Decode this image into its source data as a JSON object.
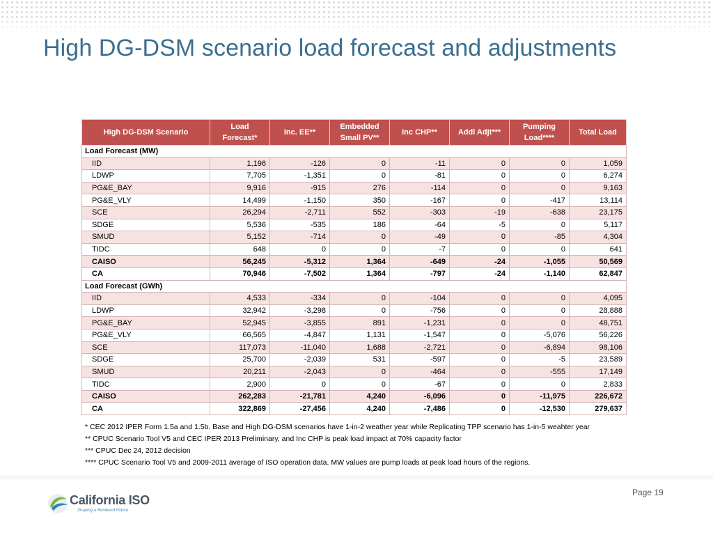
{
  "title": "High DG-DSM scenario load forecast and adjustments",
  "table": {
    "headers": [
      "High DG-DSM Scenario",
      "Load Forecast*",
      "Inc. EE**",
      "Embedded Small PV**",
      "Inc CHP**",
      "Addl Adjt***",
      "Pumping Load****",
      "Total Load"
    ],
    "mw_section": "Load Forecast (MW)",
    "mw_rows": [
      {
        "name": "IID",
        "values": [
          "1,196",
          "-126",
          "0",
          "-11",
          "0",
          "0",
          "1,059"
        ]
      },
      {
        "name": "LDWP",
        "values": [
          "7,705",
          "-1,351",
          "0",
          "-81",
          "0",
          "0",
          "6,274"
        ]
      },
      {
        "name": "PG&E_BAY",
        "values": [
          "9,916",
          "-915",
          "276",
          "-114",
          "0",
          "0",
          "9,163"
        ]
      },
      {
        "name": "PG&E_VLY",
        "values": [
          "14,499",
          "-1,150",
          "350",
          "-167",
          "0",
          "-417",
          "13,114"
        ]
      },
      {
        "name": "SCE",
        "values": [
          "26,294",
          "-2,711",
          "552",
          "-303",
          "-19",
          "-638",
          "23,175"
        ]
      },
      {
        "name": "SDGE",
        "values": [
          "5,536",
          "-535",
          "186",
          "-64",
          "-5",
          "0",
          "5,117"
        ]
      },
      {
        "name": "SMUD",
        "values": [
          "5,152",
          "-714",
          "0",
          "-49",
          "0",
          "-85",
          "4,304"
        ]
      },
      {
        "name": "TIDC",
        "values": [
          "648",
          "0",
          "0",
          "-7",
          "0",
          "0",
          "641"
        ]
      },
      {
        "name": "CAISO",
        "values": [
          "56,245",
          "-5,312",
          "1,364",
          "-649",
          "-24",
          "-1,055",
          "50,569"
        ]
      },
      {
        "name": "CA",
        "values": [
          "70,946",
          "-7,502",
          "1,364",
          "-797",
          "-24",
          "-1,140",
          "62,847"
        ]
      }
    ],
    "gwh_section": "Load Forecast (GWh)",
    "gwh_rows": [
      {
        "name": "IID",
        "values": [
          "4,533",
          "-334",
          "0",
          "-104",
          "0",
          "0",
          "4,095"
        ]
      },
      {
        "name": "LDWP",
        "values": [
          "32,942",
          "-3,298",
          "0",
          "-756",
          "0",
          "0",
          "28,888"
        ]
      },
      {
        "name": "PG&E_BAY",
        "values": [
          "52,945",
          "-3,855",
          "891",
          "-1,231",
          "0",
          "0",
          "48,751"
        ]
      },
      {
        "name": "PG&E_VLY",
        "values": [
          "66,565",
          "-4,847",
          "1,131",
          "-1,547",
          "0",
          "-5,076",
          "56,226"
        ]
      },
      {
        "name": "SCE",
        "values": [
          "117,073",
          "-11,040",
          "1,688",
          "-2,721",
          "0",
          "-6,894",
          "98,106"
        ]
      },
      {
        "name": "SDGE",
        "values": [
          "25,700",
          "-2,039",
          "531",
          "-597",
          "0",
          "-5",
          "23,589"
        ]
      },
      {
        "name": "SMUD",
        "values": [
          "20,211",
          "-2,043",
          "0",
          "-464",
          "0",
          "-555",
          "17,149"
        ]
      },
      {
        "name": "TIDC",
        "values": [
          "2,900",
          "0",
          "0",
          "-67",
          "0",
          "0",
          "2,833"
        ]
      },
      {
        "name": "CAISO",
        "values": [
          "262,283",
          "-21,781",
          "4,240",
          "-6,096",
          "0",
          "-11,975",
          "226,672"
        ]
      },
      {
        "name": "CA",
        "values": [
          "322,869",
          "-27,456",
          "4,240",
          "-7,486",
          "0",
          "-12,530",
          "279,637"
        ]
      }
    ]
  },
  "notes": [
    "* CEC 2012 IPER Form 1.5a and 1.5b. Base and High DG-DSM scenarios have 1-in-2 weather year while Replicating TPP scenario has 1-in-5 weahter year",
    "** CPUC Scenario Tool V5 and CEC IPER 2013 Preliminary, and Inc CHP is peak load impact at 70% capacity factor",
    "*** CPUC Dec 24, 2012 decision",
    "**** CPUC Scenario Tool V5 and 2009-2011 average of ISO operation data. MW values are pump loads at peak load hours of the regions."
  ],
  "page_label": "Page 19",
  "logo": {
    "name": "California ISO",
    "tagline": "Shaping a Renewed Future"
  },
  "colors": {
    "title": "#3c6e8f",
    "header_bg": "#c0504d",
    "row_alt": "#f6e2e1"
  }
}
